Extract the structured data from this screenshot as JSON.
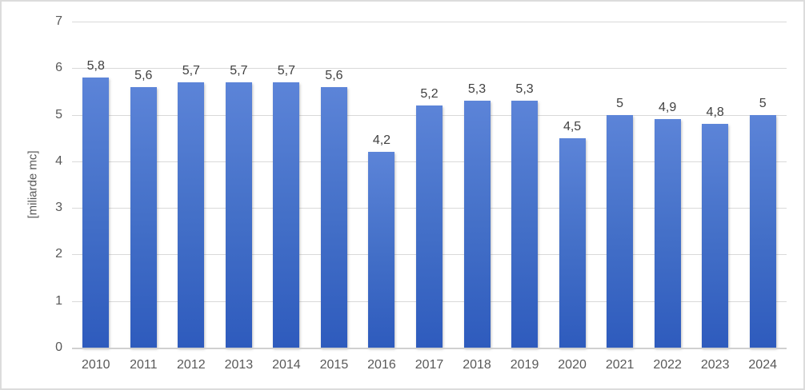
{
  "chart_data": {
    "type": "bar",
    "title": "",
    "xlabel": "",
    "ylabel": "[miliarde mc]",
    "categories": [
      "2010",
      "2011",
      "2012",
      "2013",
      "2014",
      "2015",
      "2016",
      "2017",
      "2018",
      "2019",
      "2020",
      "2021",
      "2022",
      "2023",
      "2024"
    ],
    "values": [
      5.8,
      5.6,
      5.7,
      5.7,
      5.7,
      5.6,
      4.2,
      5.2,
      5.3,
      5.3,
      4.5,
      5,
      4.9,
      4.8,
      5
    ],
    "value_labels": [
      "5,8",
      "5,6",
      "5,7",
      "5,7",
      "5,7",
      "5,6",
      "4,2",
      "5,2",
      "5,3",
      "5,3",
      "4,5",
      "5",
      "4,9",
      "4,8",
      "5"
    ],
    "ylim": [
      0,
      7
    ],
    "yticks": [
      0,
      1,
      2,
      3,
      4,
      5,
      6,
      7
    ],
    "grid": true,
    "legend": false,
    "colors": {
      "bar_gradient_top": "#5c84d8",
      "bar_gradient_mid": "#4470c8",
      "bar_gradient_bottom": "#2e5bbd",
      "gridline": "#d9d9d9",
      "axis_line": "#d0d0d0",
      "axis_text": "#595959",
      "data_label_text": "#404040",
      "frame_border": "#dcdcdc",
      "background": "#ffffff"
    }
  }
}
